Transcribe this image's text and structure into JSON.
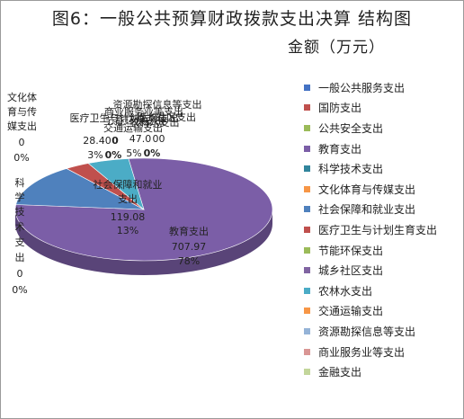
{
  "chart_data": {
    "type": "pie",
    "title": "图6：一般公共预算财政拨款支出决算 结构图",
    "subtitle": "金额（万元）",
    "slices": [
      {
        "name": "一般公共服务支出",
        "value": 0,
        "percent": "0%",
        "color": "#4472c4"
      },
      {
        "name": "国防支出",
        "value": 0,
        "percent": "0%",
        "color": "#c0504d"
      },
      {
        "name": "公共安全支出",
        "value": 0,
        "percent": "0%",
        "color": "#9bbb59"
      },
      {
        "name": "教育支出",
        "value": 707.97,
        "value_label": "707.97",
        "percent": "78%",
        "color": "#7b5ea7"
      },
      {
        "name": "科学技术支出",
        "value": 0,
        "percent": "0%",
        "color": "#31859c"
      },
      {
        "name": "文化体育与传媒支出",
        "value": 0,
        "percent": "0%",
        "color": "#f79646"
      },
      {
        "name": "社会保障和就业支出",
        "value": 119.08,
        "value_label": "119.08",
        "percent": "13%",
        "color": "#4f81bd"
      },
      {
        "name": "医疗卫生与计划生育支出",
        "value": 28.4,
        "value_label": "28.4",
        "percent": "3%",
        "color": "#c0504d"
      },
      {
        "name": "节能环保支出",
        "value": 0,
        "percent": "0%",
        "color": "#9bbb59"
      },
      {
        "name": "城乡社区支出",
        "value": 0,
        "percent": "0%",
        "color": "#8064a2"
      },
      {
        "name": "农林水支出",
        "value": 47.0,
        "value_label": "47.0",
        "percent": "5%",
        "color": "#4bacc6"
      },
      {
        "name": "交通运输支出",
        "value": 0,
        "percent": "0%",
        "color": "#f79646"
      },
      {
        "name": "资源勘探信息等支出",
        "value": 0,
        "percent": "0%",
        "color": "#95b3d7"
      },
      {
        "name": "商业服务业等支出",
        "value": 0,
        "percent": "0%",
        "color": "#d99694"
      },
      {
        "name": "金融支出",
        "value": 0,
        "percent": "0%",
        "color": "#c3d69b"
      }
    ],
    "labels": {
      "culture": {
        "l1": "文化体",
        "l2": "育与传",
        "l3": "媒支出",
        "value": "0",
        "pct": "0%"
      },
      "science": {
        "c1": "科",
        "c2": "学",
        "c3": "技",
        "c4": "术",
        "c5": "支",
        "c6": "出",
        "value": "0",
        "pct": "0%"
      },
      "social": {
        "l1": "社会保障和就业",
        "l2": "支出",
        "value": "119.08",
        "pct": "13%"
      },
      "education": {
        "l1": "教育支出",
        "value": "707.97",
        "pct": "78%"
      },
      "cluster": {
        "t1": "资源勘探信息等支出",
        "t2": "商业服务业等支出",
        "t3": "医疗卫生与计划生育支出",
        "t4": "农林水支出",
        "t5": "交通运输支出",
        "t6": "节能环保支出",
        "t7": "城乡社区支出",
        "v1": "28.40",
        "v2": "0",
        "v3": "47.0",
        "v4": "0",
        "v5": "0",
        "p1": "3%",
        "p2": "0%",
        "p3": "5%",
        "p4": "0%"
      }
    },
    "legend_position": "right"
  }
}
